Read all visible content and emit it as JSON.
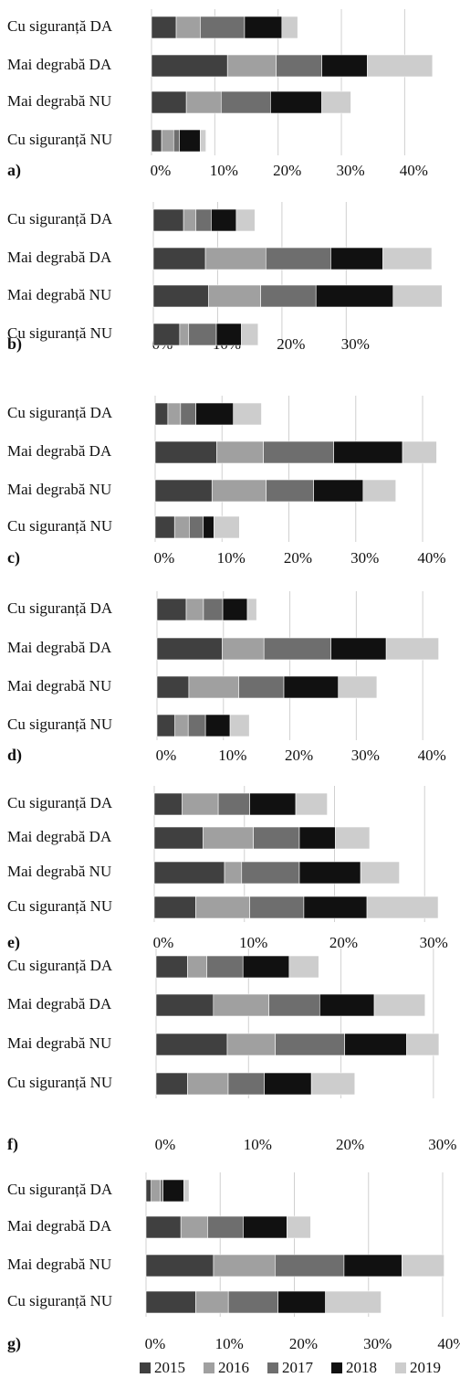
{
  "legend": [
    {
      "name": "2015",
      "color": "#404040"
    },
    {
      "name": "2016",
      "color": "#a0a0a0"
    },
    {
      "name": "2017",
      "color": "#6e6e6e"
    },
    {
      "name": "2018",
      "color": "#111111"
    },
    {
      "name": "2019",
      "color": "#cdcdcd"
    }
  ],
  "chart_data": [
    {
      "type": "bar",
      "label": "a)",
      "categories": [
        "Cu siguranță DA",
        "Mai degrabă DA",
        "Mai degrabă NU",
        "Cu siguranță NU"
      ],
      "series": [
        {
          "values": [
            3.9,
            12.0,
            5.5,
            1.6
          ]
        },
        {
          "values": [
            3.8,
            7.7,
            5.5,
            1.9
          ]
        },
        {
          "values": [
            7.0,
            7.2,
            7.8,
            0.9
          ]
        },
        {
          "values": [
            5.9,
            7.2,
            8.1,
            3.3
          ]
        },
        {
          "values": [
            2.5,
            10.3,
            4.6,
            0.9
          ]
        }
      ],
      "xlim": [
        0,
        46
      ],
      "xticks": [
        {
          "value": 0,
          "label": "0%"
        },
        {
          "value": 10,
          "label": "10%"
        },
        {
          "value": 20,
          "label": "20%"
        },
        {
          "value": 30,
          "label": "30%"
        },
        {
          "value": 40,
          "label": "40%"
        }
      ]
    },
    {
      "type": "bar",
      "label": "b)",
      "categories": [
        "Cu siguranță DA",
        "Mai degrabă DA",
        "Mai degrabă NU",
        "Cu siguranță NU"
      ],
      "series": [
        {
          "values": [
            4.7,
            8.1,
            8.6,
            4.1
          ]
        },
        {
          "values": [
            1.9,
            9.4,
            8.1,
            1.4
          ]
        },
        {
          "values": [
            2.4,
            10.1,
            8.6,
            4.3
          ]
        },
        {
          "values": [
            3.9,
            8.1,
            12.0,
            3.9
          ]
        },
        {
          "values": [
            2.9,
            7.6,
            7.6,
            2.6
          ]
        }
      ],
      "xlim": [
        0,
        45
      ],
      "xticks": [
        {
          "value": 0,
          "label": "0%"
        },
        {
          "value": 10,
          "label": "10%"
        },
        {
          "value": 20,
          "label": "20%"
        },
        {
          "value": 30,
          "label": "30%"
        }
      ]
    },
    {
      "type": "bar",
      "label": "c)",
      "categories": [
        "Cu siguranță DA",
        "Mai degrabă DA",
        "Mai degrabă NU",
        "Cu siguranță NU"
      ],
      "series": [
        {
          "values": [
            1.9,
            9.2,
            8.5,
            2.9
          ]
        },
        {
          "values": [
            1.9,
            7.0,
            8.1,
            2.2
          ]
        },
        {
          "values": [
            2.3,
            10.5,
            7.1,
            2.1
          ]
        },
        {
          "values": [
            5.6,
            10.3,
            7.4,
            1.6
          ]
        },
        {
          "values": [
            4.2,
            5.1,
            4.9,
            3.8
          ]
        }
      ],
      "xlim": [
        0,
        43
      ],
      "xticks": [
        {
          "value": 0,
          "label": "0%"
        },
        {
          "value": 10,
          "label": "10%"
        },
        {
          "value": 20,
          "label": "20%"
        },
        {
          "value": 30,
          "label": "30%"
        },
        {
          "value": 40,
          "label": "40%"
        }
      ]
    },
    {
      "type": "bar",
      "label": "d)",
      "categories": [
        "Cu siguranță DA",
        "Mai degrabă DA",
        "Mai degrabă NU",
        "Cu siguranță NU"
      ],
      "series": [
        {
          "values": [
            4.4,
            9.8,
            4.8,
            2.7
          ]
        },
        {
          "values": [
            2.6,
            6.3,
            7.5,
            2.0
          ]
        },
        {
          "values": [
            2.9,
            10.1,
            6.8,
            2.6
          ]
        },
        {
          "values": [
            3.7,
            8.3,
            8.2,
            3.7
          ]
        },
        {
          "values": [
            1.4,
            7.9,
            5.8,
            2.9
          ]
        }
      ],
      "xlim": [
        0,
        43
      ],
      "xticks": [
        {
          "value": 0,
          "label": "0%"
        },
        {
          "value": 10,
          "label": "10%"
        },
        {
          "value": 20,
          "label": "20%"
        },
        {
          "value": 30,
          "label": "30%"
        },
        {
          "value": 40,
          "label": "40%"
        }
      ]
    },
    {
      "type": "bar",
      "label": "e)",
      "categories": [
        "Cu siguranță DA",
        "Mai degrabă DA",
        "Mai degrabă NU",
        "Cu siguranță NU"
      ],
      "series": [
        {
          "values": [
            3.1,
            5.4,
            7.8,
            4.6
          ]
        },
        {
          "values": [
            4.0,
            5.6,
            1.9,
            6.0
          ]
        },
        {
          "values": [
            3.5,
            5.1,
            6.4,
            6.0
          ]
        },
        {
          "values": [
            5.1,
            4.0,
            6.8,
            7.0
          ]
        },
        {
          "values": [
            3.5,
            3.8,
            4.3,
            7.9
          ]
        }
      ],
      "xlim": [
        0,
        32
      ],
      "xticks": [
        {
          "value": 0,
          "label": "0%"
        },
        {
          "value": 10,
          "label": "10%"
        },
        {
          "value": 20,
          "label": "20%"
        },
        {
          "value": 30,
          "label": "30%"
        }
      ]
    },
    {
      "type": "bar",
      "label": "f)",
      "categories": [
        "Cu siguranță DA",
        "Mai degrabă DA",
        "Mai degrabă NU",
        "Cu siguranță NU"
      ],
      "series": [
        {
          "values": [
            3.4,
            6.2,
            7.7,
            3.4
          ]
        },
        {
          "values": [
            2.1,
            6.0,
            5.2,
            4.4
          ]
        },
        {
          "values": [
            3.9,
            5.5,
            7.5,
            3.9
          ]
        },
        {
          "values": [
            5.0,
            5.9,
            6.7,
            5.1
          ]
        },
        {
          "values": [
            3.2,
            5.5,
            3.5,
            4.7
          ]
        }
      ],
      "xlim": [
        0,
        31
      ],
      "xticks": [
        {
          "value": 0,
          "label": "0%"
        },
        {
          "value": 10,
          "label": "10%"
        },
        {
          "value": 20,
          "label": "20%"
        },
        {
          "value": 30,
          "label": "30%"
        }
      ]
    },
    {
      "type": "bar",
      "label": "g)",
      "categories": [
        "Cu siguranță DA",
        "Mai degrabă DA",
        "Mai degrabă NU",
        "Cu siguranță NU"
      ],
      "series": [
        {
          "values": [
            0.7,
            4.7,
            9.1,
            6.7
          ]
        },
        {
          "values": [
            1.2,
            3.6,
            8.3,
            4.4
          ]
        },
        {
          "values": [
            0.4,
            4.8,
            9.3,
            6.7
          ]
        },
        {
          "values": [
            2.8,
            5.9,
            7.8,
            6.4
          ]
        },
        {
          "values": [
            0.7,
            3.2,
            5.7,
            7.5
          ]
        }
      ],
      "xlim": [
        0,
        40
      ],
      "xticks": [
        {
          "value": 0,
          "label": "0%"
        },
        {
          "value": 10,
          "label": "10%"
        },
        {
          "value": 20,
          "label": "20%"
        },
        {
          "value": 30,
          "label": "30%"
        },
        {
          "value": 40,
          "label": "40%"
        }
      ]
    }
  ]
}
